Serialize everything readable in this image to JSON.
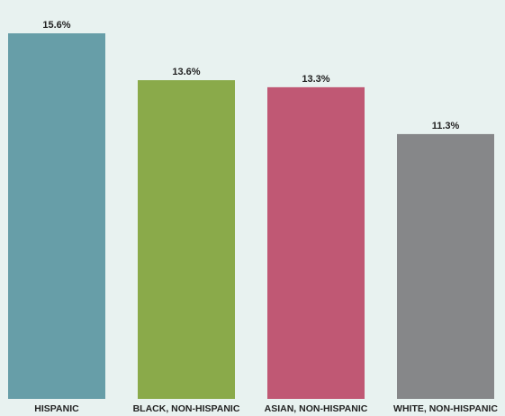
{
  "chart_data": {
    "type": "bar",
    "title": "",
    "xlabel": "",
    "ylabel": "",
    "categories": [
      "HISPANIC",
      "BLACK, NON-HISPANIC",
      "ASIAN, NON-HISPANIC",
      "WHITE, NON-HISPANIC"
    ],
    "values": [
      15.6,
      13.6,
      13.3,
      11.3
    ],
    "value_labels": [
      "15.6%",
      "13.6%",
      "13.3%",
      "11.3%"
    ],
    "colors": [
      "#679ea8",
      "#8aaa4a",
      "#c05874",
      "#868789"
    ],
    "ylim": [
      0,
      15.6
    ],
    "grid": false,
    "legend": "none"
  },
  "style": {
    "background": "#e8f2f0",
    "label_color": "#222222"
  }
}
